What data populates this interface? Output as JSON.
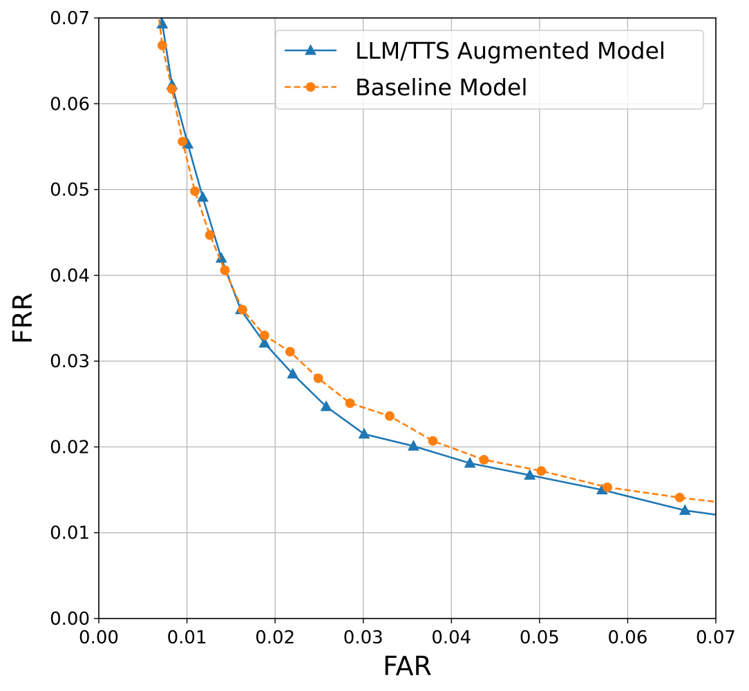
{
  "chart_data": {
    "type": "line",
    "title": "",
    "xlabel": "FAR",
    "ylabel": "FRR",
    "xlim": [
      0.0,
      0.07
    ],
    "ylim": [
      0.0,
      0.07
    ],
    "xticks": [
      "0.00",
      "0.01",
      "0.02",
      "0.03",
      "0.04",
      "0.05",
      "0.06",
      "0.07"
    ],
    "yticks": [
      "0.00",
      "0.01",
      "0.02",
      "0.03",
      "0.04",
      "0.05",
      "0.06",
      "0.07"
    ],
    "grid": true,
    "legend_position": "top-right",
    "series": [
      {
        "name": "LLM/TTS Augmented Model",
        "color": "#1f77b4",
        "line_style": "solid",
        "marker": "triangle",
        "x": [
          0.0065,
          0.0072,
          0.0083,
          0.0101,
          0.0118,
          0.0139,
          0.0161,
          0.0188,
          0.022,
          0.0258,
          0.0301,
          0.0357,
          0.0421,
          0.0489,
          0.0571,
          0.0665,
          0.07
        ],
        "y": [
          0.073,
          0.0693,
          0.0622,
          0.0553,
          0.0491,
          0.042,
          0.036,
          0.0321,
          0.0285,
          0.0247,
          0.0215,
          0.0201,
          0.0181,
          0.0167,
          0.015,
          0.0126,
          0.0121
        ]
      },
      {
        "name": "Baseline Model",
        "color": "#ff7f0e",
        "line_style": "dashed",
        "marker": "circle",
        "x": [
          0.0066,
          0.0072,
          0.0083,
          0.0095,
          0.0109,
          0.0126,
          0.0143,
          0.0163,
          0.0188,
          0.0217,
          0.0249,
          0.0285,
          0.033,
          0.0379,
          0.0437,
          0.0502,
          0.0577,
          0.0659,
          0.07
        ],
        "y": [
          0.072,
          0.0668,
          0.0617,
          0.0556,
          0.0498,
          0.0447,
          0.0406,
          0.036,
          0.033,
          0.0311,
          0.028,
          0.0251,
          0.0236,
          0.0207,
          0.0185,
          0.0172,
          0.0153,
          0.0141,
          0.0136
        ]
      }
    ],
    "marker_x": {
      "LLM/TTS Augmented Model": [
        0.0072,
        0.0083,
        0.0101,
        0.0118,
        0.0139,
        0.0161,
        0.0188,
        0.022,
        0.0258,
        0.0301,
        0.0357,
        0.0421,
        0.0489,
        0.0571,
        0.0665
      ],
      "Baseline Model": [
        0.0072,
        0.0083,
        0.0095,
        0.0109,
        0.0126,
        0.0143,
        0.0163,
        0.0188,
        0.0217,
        0.0249,
        0.0285,
        0.033,
        0.0379,
        0.0437,
        0.0502,
        0.0577,
        0.0659
      ]
    }
  }
}
